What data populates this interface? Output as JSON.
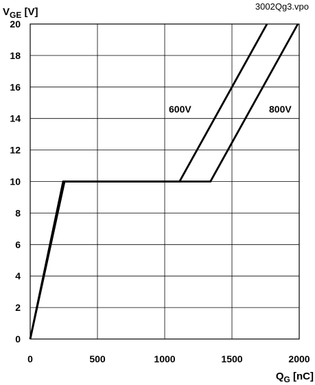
{
  "chart_data": {
    "type": "line",
    "file_tag": "3002Qg3.vpo",
    "y_axis": {
      "label_main": "V",
      "label_sub": "GE",
      "label_unit": " [V]",
      "range": [
        0,
        20
      ],
      "ticks": [
        "0",
        "2",
        "4",
        "6",
        "8",
        "10",
        "12",
        "14",
        "16",
        "18",
        "20"
      ]
    },
    "x_axis": {
      "label_main": "Q",
      "label_sub": "G",
      "label_unit": " [nC]",
      "range": [
        0,
        2000
      ],
      "ticks": [
        "0",
        "500",
        "1000",
        "1500",
        "2000"
      ]
    },
    "grid": true,
    "series": [
      {
        "name": "600V",
        "points": [
          [
            0,
            0
          ],
          [
            245,
            10
          ],
          [
            1110,
            10
          ],
          [
            1760,
            20
          ]
        ]
      },
      {
        "name": "800V",
        "points": [
          [
            0,
            0
          ],
          [
            255,
            10
          ],
          [
            1340,
            10
          ],
          [
            1990,
            20
          ]
        ]
      }
    ]
  }
}
